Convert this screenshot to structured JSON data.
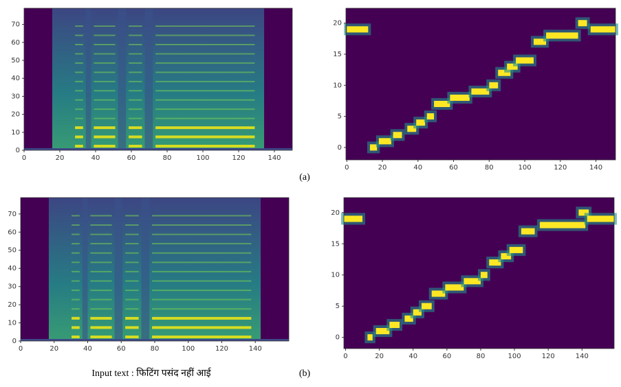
{
  "chart_data": [
    {
      "type": "spectrogram",
      "xlim": [
        0,
        150
      ],
      "ylim": [
        0,
        79
      ],
      "xticks": [
        0,
        20,
        40,
        60,
        80,
        100,
        120,
        140
      ],
      "yticks": [
        0,
        10,
        20,
        30,
        40,
        50,
        60,
        70
      ]
    },
    {
      "type": "alignment",
      "xlim": [
        -0.5,
        151
      ],
      "ylim": [
        -2,
        22.4
      ],
      "xticks": [
        0,
        20,
        40,
        60,
        80,
        100,
        120,
        140
      ],
      "yticks": [
        0,
        5,
        10,
        15,
        20
      ],
      "rows": [
        19,
        0,
        1,
        2,
        3,
        4,
        5,
        7,
        8,
        9,
        10,
        12,
        13,
        14,
        17,
        18,
        20,
        19
      ],
      "x_start": [
        0,
        13,
        18,
        26,
        34,
        39,
        45,
        49,
        58,
        70,
        80,
        85,
        90,
        95,
        105,
        112,
        130,
        137
      ],
      "x_end": [
        12,
        17,
        25,
        31,
        39,
        44,
        49,
        58,
        69,
        80,
        85,
        92,
        96,
        105,
        112,
        130,
        135,
        151
      ]
    },
    {
      "type": "spectrogram",
      "xlim": [
        0,
        160
      ],
      "ylim": [
        0,
        79
      ],
      "xticks": [
        0,
        20,
        40,
        60,
        80,
        100,
        120,
        140
      ],
      "yticks": [
        0,
        10,
        20,
        30,
        40,
        50,
        60,
        70
      ]
    },
    {
      "type": "alignment",
      "xlim": [
        -1,
        159
      ],
      "ylim": [
        -1.8,
        22.4
      ],
      "xticks": [
        0,
        20,
        40,
        60,
        80,
        100,
        120,
        140
      ],
      "yticks": [
        0,
        5,
        10,
        15,
        20
      ],
      "rows": [
        19,
        0,
        1,
        2,
        3,
        4,
        5,
        7,
        8,
        9,
        10,
        12,
        13,
        14,
        17,
        18,
        20,
        19
      ],
      "x_start": [
        -1,
        13,
        18,
        26,
        35,
        40,
        45,
        51,
        59,
        70,
        80,
        85,
        92,
        97,
        104,
        115,
        138,
        143
      ],
      "x_end": [
        10,
        16,
        26,
        32,
        40,
        45,
        51,
        59,
        70,
        80,
        84,
        92,
        98,
        105,
        112,
        142,
        144,
        159
      ]
    }
  ],
  "captions": [
    "(a)",
    "(b)"
  ],
  "input_text": "Input text : फिटिंग पसंद नहीं आई"
}
